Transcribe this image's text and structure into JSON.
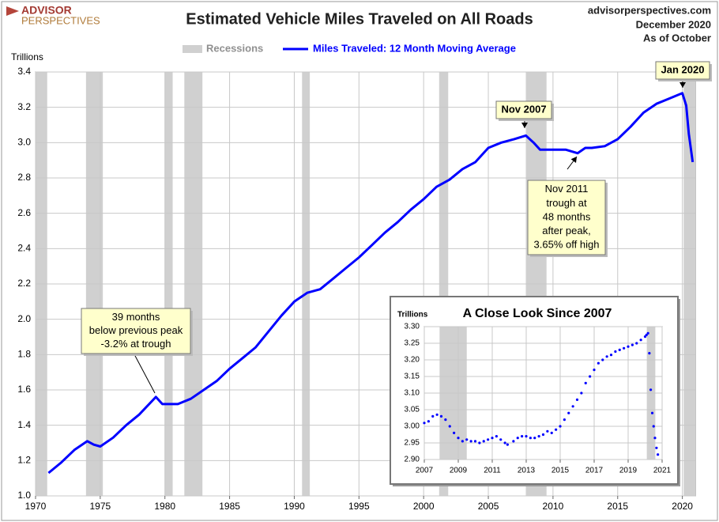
{
  "header": {
    "logo_top": "ADVISOR",
    "logo_bottom": "PERSPECTIVES",
    "site": "advisorperspectives.com",
    "date": "December 2020",
    "as_of": "As of October"
  },
  "chart_data": [
    {
      "type": "line",
      "title": "Estimated Vehicle Miles Traveled on All Roads",
      "y_label": "Trillions",
      "xlim": [
        1970,
        2021
      ],
      "xticks": [
        1970,
        1975,
        1980,
        1985,
        1990,
        1995,
        2000,
        2005,
        2010,
        2015,
        2020
      ],
      "ylim": [
        1.0,
        3.4
      ],
      "yticks": [
        {
          "value": 1.0,
          "label": "1.0"
        },
        1.2,
        1.4,
        1.6,
        1.8,
        {
          "value": 2.0,
          "label": "2.0"
        },
        2.2,
        2.4,
        2.6,
        2.8,
        {
          "value": 3.0,
          "label": "3.0"
        },
        3.2,
        3.4
      ],
      "grid": true,
      "recessions": {
        "name": "Recessions",
        "color": "#d0d0d0",
        "spans": [
          [
            1970.0,
            1970.9
          ],
          [
            1973.9,
            1975.2
          ],
          [
            1980.0,
            1980.6
          ],
          [
            1981.5,
            1982.9
          ],
          [
            1990.6,
            1991.2
          ],
          [
            2001.2,
            2001.9
          ],
          [
            2007.9,
            2009.5
          ],
          [
            2020.1,
            2021.0
          ]
        ]
      },
      "series": [
        {
          "name": "Miles Traveled: 12 Month Moving Average",
          "color": "#0000ff",
          "x": [
            1971.0,
            1972.0,
            1973.0,
            1974.0,
            1974.5,
            1975.0,
            1976.0,
            1977.0,
            1978.0,
            1979.3,
            1979.8,
            1980.5,
            1981.0,
            1982.0,
            1983.0,
            1984.0,
            1985.0,
            1986.0,
            1987.0,
            1988.0,
            1989.0,
            1990.0,
            1991.0,
            1992.0,
            1993.0,
            1994.0,
            1995.0,
            1996.0,
            1997.0,
            1998.0,
            1999.0,
            2000.0,
            2001.0,
            2002.0,
            2003.0,
            2004.0,
            2005.0,
            2006.0,
            2007.0,
            2007.9,
            2008.5,
            2009.0,
            2010.0,
            2011.0,
            2011.9,
            2012.5,
            2013.0,
            2014.0,
            2015.0,
            2016.0,
            2017.0,
            2018.0,
            2019.0,
            2020.0,
            2020.3,
            2020.5,
            2020.8
          ],
          "values": [
            1.13,
            1.19,
            1.26,
            1.31,
            1.29,
            1.28,
            1.33,
            1.4,
            1.46,
            1.56,
            1.52,
            1.52,
            1.52,
            1.55,
            1.6,
            1.65,
            1.72,
            1.78,
            1.84,
            1.93,
            2.02,
            2.1,
            2.15,
            2.17,
            2.23,
            2.29,
            2.35,
            2.42,
            2.49,
            2.55,
            2.62,
            2.68,
            2.75,
            2.79,
            2.85,
            2.89,
            2.97,
            3.0,
            3.02,
            3.04,
            3.0,
            2.96,
            2.96,
            2.96,
            2.94,
            2.97,
            2.97,
            2.98,
            3.02,
            3.09,
            3.17,
            3.22,
            3.25,
            3.28,
            3.21,
            3.05,
            2.89
          ]
        }
      ],
      "annotations": [
        {
          "lines": [
            "Nov 2007"
          ]
        },
        {
          "lines": [
            "Jan 2020"
          ]
        },
        {
          "lines": [
            "Nov 2011",
            "trough at",
            "48 months",
            "after peak,",
            "3.65% off high"
          ]
        },
        {
          "lines": [
            "39 months",
            "below previous peak",
            "-3.2% at trough"
          ]
        }
      ]
    },
    {
      "type": "scatter",
      "title": "A Close Look Since 2007",
      "y_label": "Trillions",
      "xlim": [
        2007,
        2021
      ],
      "xticks": [
        2007,
        2009,
        2011,
        2013,
        2015,
        2017,
        2019,
        2021
      ],
      "ylim": [
        2.9,
        3.3
      ],
      "yticks": [
        {
          "value": 2.9,
          "label": "2.90"
        },
        2.95,
        {
          "value": 3.0,
          "label": "3.00"
        },
        3.05,
        {
          "value": 3.1,
          "label": "3.10"
        },
        3.15,
        {
          "value": 3.2,
          "label": "3.20"
        },
        3.25,
        {
          "value": 3.3,
          "label": "3.30"
        }
      ],
      "grid": true,
      "recessions": {
        "color": "#d0d0d0",
        "spans": [
          [
            2007.9,
            2009.5
          ],
          [
            2020.1,
            2020.6
          ]
        ]
      },
      "series": [
        {
          "color": "#0000ff",
          "x": [
            2007.0,
            2007.25,
            2007.5,
            2007.75,
            2008.0,
            2008.25,
            2008.5,
            2008.75,
            2009.0,
            2009.25,
            2009.5,
            2009.75,
            2010.0,
            2010.25,
            2010.5,
            2010.75,
            2011.0,
            2011.25,
            2011.5,
            2011.75,
            2011.9,
            2012.25,
            2012.5,
            2012.75,
            2013.0,
            2013.25,
            2013.5,
            2013.75,
            2014.0,
            2014.25,
            2014.5,
            2014.75,
            2015.0,
            2015.25,
            2015.5,
            2015.75,
            2016.0,
            2016.25,
            2016.5,
            2016.75,
            2017.0,
            2017.25,
            2017.5,
            2017.75,
            2018.0,
            2018.25,
            2018.5,
            2018.75,
            2019.0,
            2019.25,
            2019.5,
            2019.75,
            2020.0,
            2020.08,
            2020.17,
            2020.25,
            2020.33,
            2020.42,
            2020.5,
            2020.58,
            2020.67,
            2020.75
          ],
          "values": [
            3.01,
            3.015,
            3.03,
            3.035,
            3.03,
            3.02,
            3.0,
            2.98,
            2.965,
            2.955,
            2.96,
            2.955,
            2.955,
            2.95,
            2.955,
            2.96,
            2.965,
            2.97,
            2.96,
            2.95,
            2.945,
            2.955,
            2.965,
            2.97,
            2.97,
            2.965,
            2.965,
            2.97,
            2.975,
            2.985,
            2.98,
            2.99,
            3.0,
            3.02,
            3.04,
            3.06,
            3.08,
            3.1,
            3.13,
            3.15,
            3.17,
            3.19,
            3.2,
            3.21,
            3.215,
            3.225,
            3.23,
            3.235,
            3.24,
            3.245,
            3.25,
            3.26,
            3.27,
            3.275,
            3.28,
            3.22,
            3.11,
            3.04,
            3.0,
            2.965,
            2.935,
            2.915
          ]
        }
      ]
    }
  ]
}
